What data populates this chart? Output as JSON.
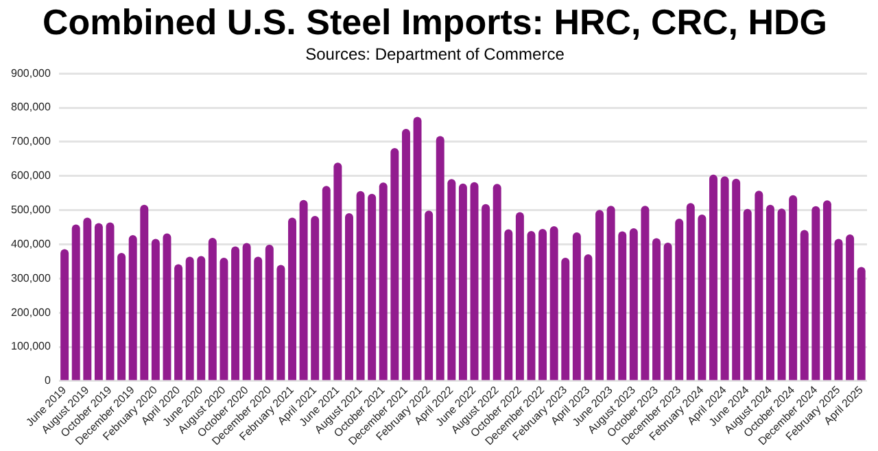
{
  "chart_data": {
    "type": "bar",
    "title": "Combined U.S. Steel Imports: HRC, CRC, HDG",
    "subtitle": "Sources: Department of Commerce",
    "categories": [
      "June 2019",
      null,
      "August 2019",
      null,
      "October 2019",
      null,
      "December 2019",
      null,
      "February 2020",
      null,
      "April 2020",
      null,
      "June 2020",
      null,
      "August 2020",
      null,
      "October 2020",
      null,
      "December 2020",
      null,
      "February 2021",
      null,
      "April 2021",
      null,
      "June 2021",
      null,
      "August 2021",
      null,
      "October 2021",
      null,
      "December 2021",
      null,
      "February 2022",
      null,
      "April 2022",
      null,
      "June 2022",
      null,
      "August 2022",
      null,
      "October 2022",
      null,
      "December 2022",
      null,
      "February 2023",
      null,
      "April 2023",
      null,
      "June 2023",
      null,
      "August 2023",
      null,
      "October 2023",
      null,
      "December 2023",
      null,
      "February 2024",
      null,
      "April 2024",
      null,
      "June 2024",
      null,
      "August 2024",
      null,
      "October 2024",
      null,
      "December 2024",
      null,
      "February 2025",
      null,
      "April 2025"
    ],
    "values": [
      386000,
      458000,
      478000,
      462000,
      464000,
      375000,
      427000,
      516000,
      416000,
      432000,
      342000,
      364000,
      366000,
      419000,
      361000,
      394000,
      404000,
      364000,
      399000,
      340000,
      478000,
      530000,
      483000,
      571000,
      639000,
      491000,
      556000,
      548000,
      581000,
      682000,
      738000,
      773000,
      499000,
      717000,
      591000,
      578000,
      582000,
      518000,
      577000,
      444000,
      494000,
      439000,
      445000,
      453000,
      361000,
      435000,
      371000,
      501000,
      513000,
      438000,
      447000,
      513000,
      418000,
      405000,
      475000,
      521000,
      487000,
      604000,
      599000,
      592000,
      504000,
      557000,
      516000,
      505000,
      544000,
      442000,
      512000,
      529000,
      416000,
      429000,
      334000
    ],
    "color": "#921c8f",
    "ylim": [
      0,
      900000
    ],
    "yticks": [
      0,
      {
        "value": 100000,
        "label": "100,000"
      },
      {
        "value": 200000,
        "label": "200,000"
      },
      {
        "value": 300000,
        "label": "300,000"
      },
      {
        "value": 400000,
        "label": "400,000"
      },
      {
        "value": 500000,
        "label": "500,000"
      },
      {
        "value": 600000,
        "label": "600,000"
      },
      {
        "value": 700000,
        "label": "700,000"
      },
      {
        "value": 800000,
        "label": "800,000"
      },
      {
        "value": 900000,
        "label": "900,000"
      }
    ],
    "grid": "y"
  }
}
